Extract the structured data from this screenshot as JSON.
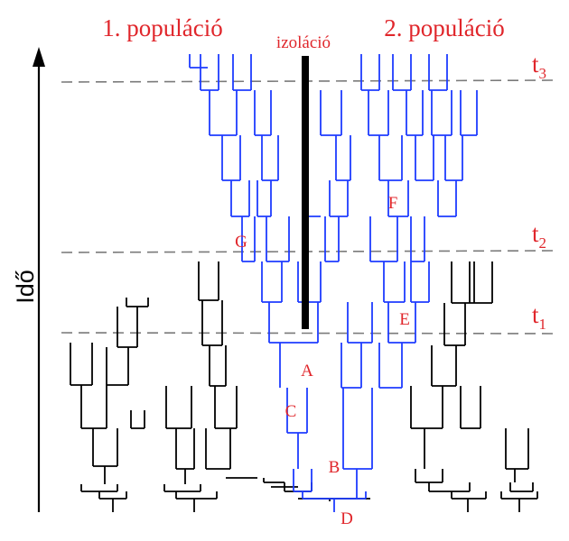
{
  "title_left": "1. populáció",
  "title_right": "2. populáció",
  "isolation_label": "izoláció",
  "time_axis_label": "Idő",
  "time_marks": [
    {
      "name": "t",
      "sub": "3"
    },
    {
      "name": "t",
      "sub": "2"
    },
    {
      "name": "t",
      "sub": "1"
    }
  ],
  "node_labels": [
    "A",
    "B",
    "C",
    "D",
    "E",
    "F",
    "G"
  ],
  "colors": {
    "text": "#e0262b",
    "lineage": "#1f3cff",
    "other": "#000000",
    "dashed": "#7a7a7a"
  }
}
